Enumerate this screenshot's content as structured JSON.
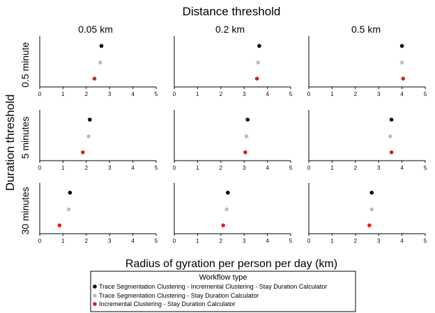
{
  "chart_data": {
    "type": "scatter",
    "title": "Distance threshold",
    "xlabel": "Radius of gyration per person per day (km)",
    "ylabel": "Duration threshold",
    "column_labels": [
      "0.05 km",
      "0.2 km",
      "0.5 km"
    ],
    "row_labels": [
      "0.5 minute",
      "5 minutes",
      "30 minutes"
    ],
    "xlim": [
      0,
      5
    ],
    "x_ticks": [
      "0",
      "1",
      "2",
      "3",
      "4",
      "5"
    ],
    "legend": {
      "title": "Workflow type",
      "position": "bottom",
      "entries": [
        "Trace Segmentation Clustering - Incremental Clustering - Stay Duration Calculator",
        "Trace Segmentation Clustering - Stay Duration Calculator",
        "Incremental Clustering - Stay Duration Calculator"
      ]
    },
    "series_colors": [
      "#000000",
      "#bdbdbd",
      "#d62020"
    ],
    "highlight_tick_color": "#1a7a1a",
    "panels": [
      {
        "row": 0,
        "col": 0,
        "values": [
          2.65,
          2.6,
          2.35
        ]
      },
      {
        "row": 0,
        "col": 1,
        "values": [
          3.65,
          3.6,
          3.55
        ]
      },
      {
        "row": 0,
        "col": 2,
        "values": [
          4.0,
          4.0,
          4.05
        ]
      },
      {
        "row": 1,
        "col": 0,
        "values": [
          2.15,
          2.1,
          1.85
        ]
      },
      {
        "row": 1,
        "col": 1,
        "values": [
          3.15,
          3.1,
          3.05
        ]
      },
      {
        "row": 1,
        "col": 2,
        "values": [
          3.55,
          3.5,
          3.55
        ]
      },
      {
        "row": 2,
        "col": 0,
        "values": [
          1.3,
          1.25,
          0.85
        ]
      },
      {
        "row": 2,
        "col": 1,
        "values": [
          2.3,
          2.25,
          2.1
        ]
      },
      {
        "row": 2,
        "col": 2,
        "values": [
          2.7,
          2.7,
          2.6
        ]
      }
    ]
  }
}
